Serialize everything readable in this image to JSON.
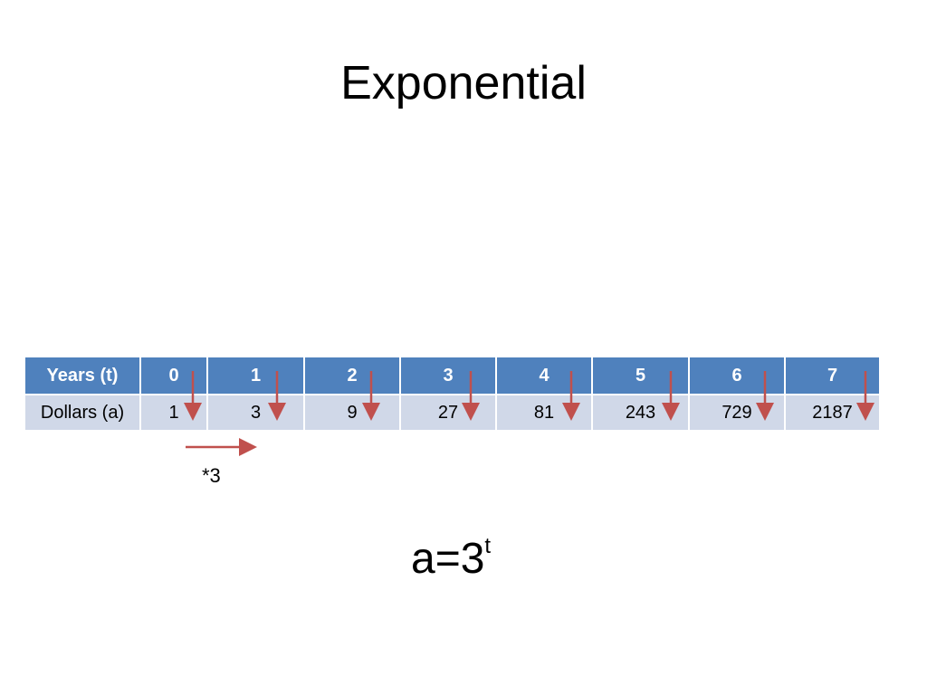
{
  "title": "Exponential",
  "table": {
    "header": [
      "Years (t)",
      0,
      1,
      2,
      3,
      4,
      5,
      6,
      7
    ],
    "rows": [
      [
        "Dollars (a)",
        1,
        3,
        9,
        27,
        81,
        243,
        729,
        2187
      ]
    ]
  },
  "annotation": "*3",
  "formula": {
    "base": "a=3",
    "superscript": "t"
  }
}
